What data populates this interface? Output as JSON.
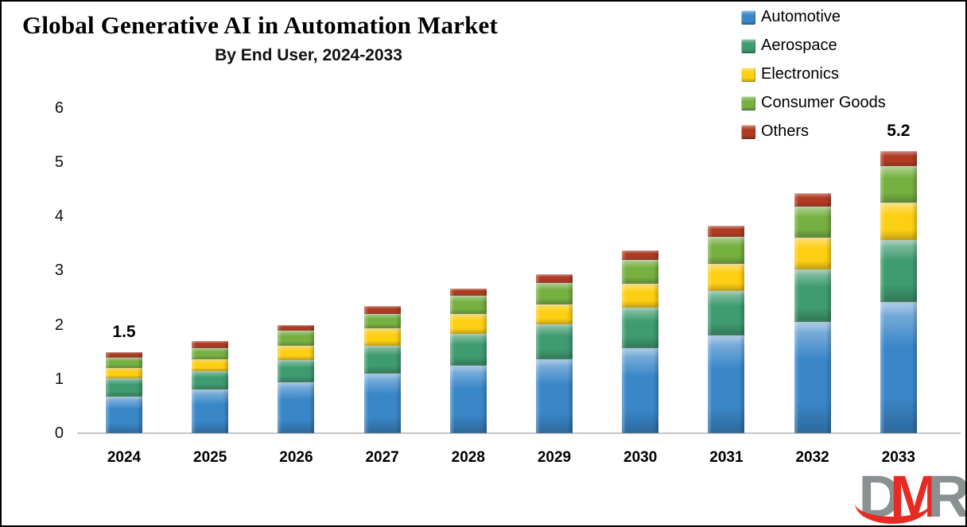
{
  "header": {
    "title": "Global Generative AI in Automation Market",
    "subtitle": "By End User, 2024-2033"
  },
  "chart_data": {
    "type": "bar",
    "stacked": true,
    "title": "Global Generative AI in Automation Market",
    "subtitle": "By End User, 2024-2033",
    "categories": [
      "2024",
      "2025",
      "2026",
      "2027",
      "2028",
      "2029",
      "2030",
      "2031",
      "2032",
      "2033"
    ],
    "series": [
      {
        "name": "Automotive",
        "color": "#3a87c8",
        "values": [
          0.68,
          0.8,
          0.94,
          1.1,
          1.25,
          1.37,
          1.57,
          1.8,
          2.06,
          2.42
        ]
      },
      {
        "name": "Aerospace",
        "color": "#3f9b70",
        "values": [
          0.33,
          0.35,
          0.41,
          0.52,
          0.58,
          0.64,
          0.74,
          0.83,
          0.96,
          1.15
        ]
      },
      {
        "name": "Electronics",
        "color": "#fdcf13",
        "values": [
          0.19,
          0.22,
          0.27,
          0.32,
          0.37,
          0.37,
          0.44,
          0.49,
          0.58,
          0.68
        ]
      },
      {
        "name": "Consumer Goods",
        "color": "#76b041",
        "values": [
          0.2,
          0.2,
          0.27,
          0.26,
          0.34,
          0.39,
          0.45,
          0.5,
          0.58,
          0.68
        ]
      },
      {
        "name": "Others",
        "color": "#b03a22",
        "values": [
          0.1,
          0.13,
          0.11,
          0.15,
          0.13,
          0.16,
          0.17,
          0.2,
          0.25,
          0.27
        ]
      }
    ],
    "totals_labels": [
      {
        "category": "2024",
        "label": "1.5"
      },
      {
        "category": "2033",
        "label": "5.2"
      }
    ],
    "ylim": [
      0,
      6
    ],
    "yticks": [
      0,
      1,
      2,
      3,
      4,
      5,
      6
    ],
    "grid": false,
    "legend_position": "top-right",
    "xlabel": "",
    "ylabel": ""
  },
  "logo": {
    "text": "DMR",
    "letters": [
      {
        "char": "D",
        "color": "#8a9192"
      },
      {
        "char": "M",
        "color": "#e62b24"
      },
      {
        "char": "R",
        "color": "#8a9192"
      }
    ]
  }
}
